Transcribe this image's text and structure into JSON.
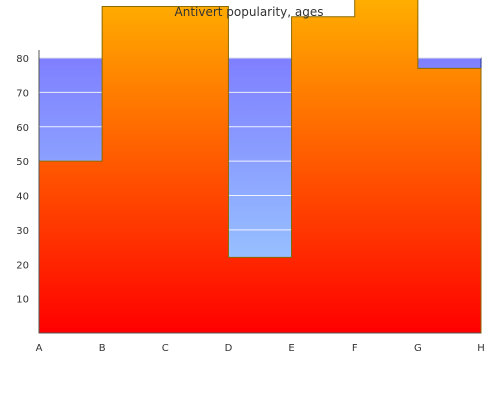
{
  "chart_data": {
    "type": "area",
    "title": "Antivert popularity, ages",
    "xlabel": "",
    "ylabel": "",
    "categories": [
      "A",
      "B",
      "C",
      "D",
      "E",
      "F",
      "G",
      "H"
    ],
    "y_ticks": [
      "10",
      "20",
      "30",
      "40",
      "50",
      "60",
      "70",
      "80"
    ],
    "ylim": [
      0,
      80
    ],
    "grid": false,
    "series": [
      {
        "style": "step-area",
        "values": [
          80,
          80,
          80,
          80,
          22,
          80,
          80,
          67
        ],
        "colors": {
          "top": "#7f7fff",
          "bottom": "#a0d8ff",
          "line": "#1f2f8f"
        }
      },
      {
        "style": "step-area",
        "values": [
          50,
          95,
          95,
          22,
          92,
          98,
          77,
          77
        ],
        "colors": {
          "top": "#ffb000",
          "bottom": "#ff0000",
          "line": "#8a6a00"
        }
      }
    ]
  }
}
